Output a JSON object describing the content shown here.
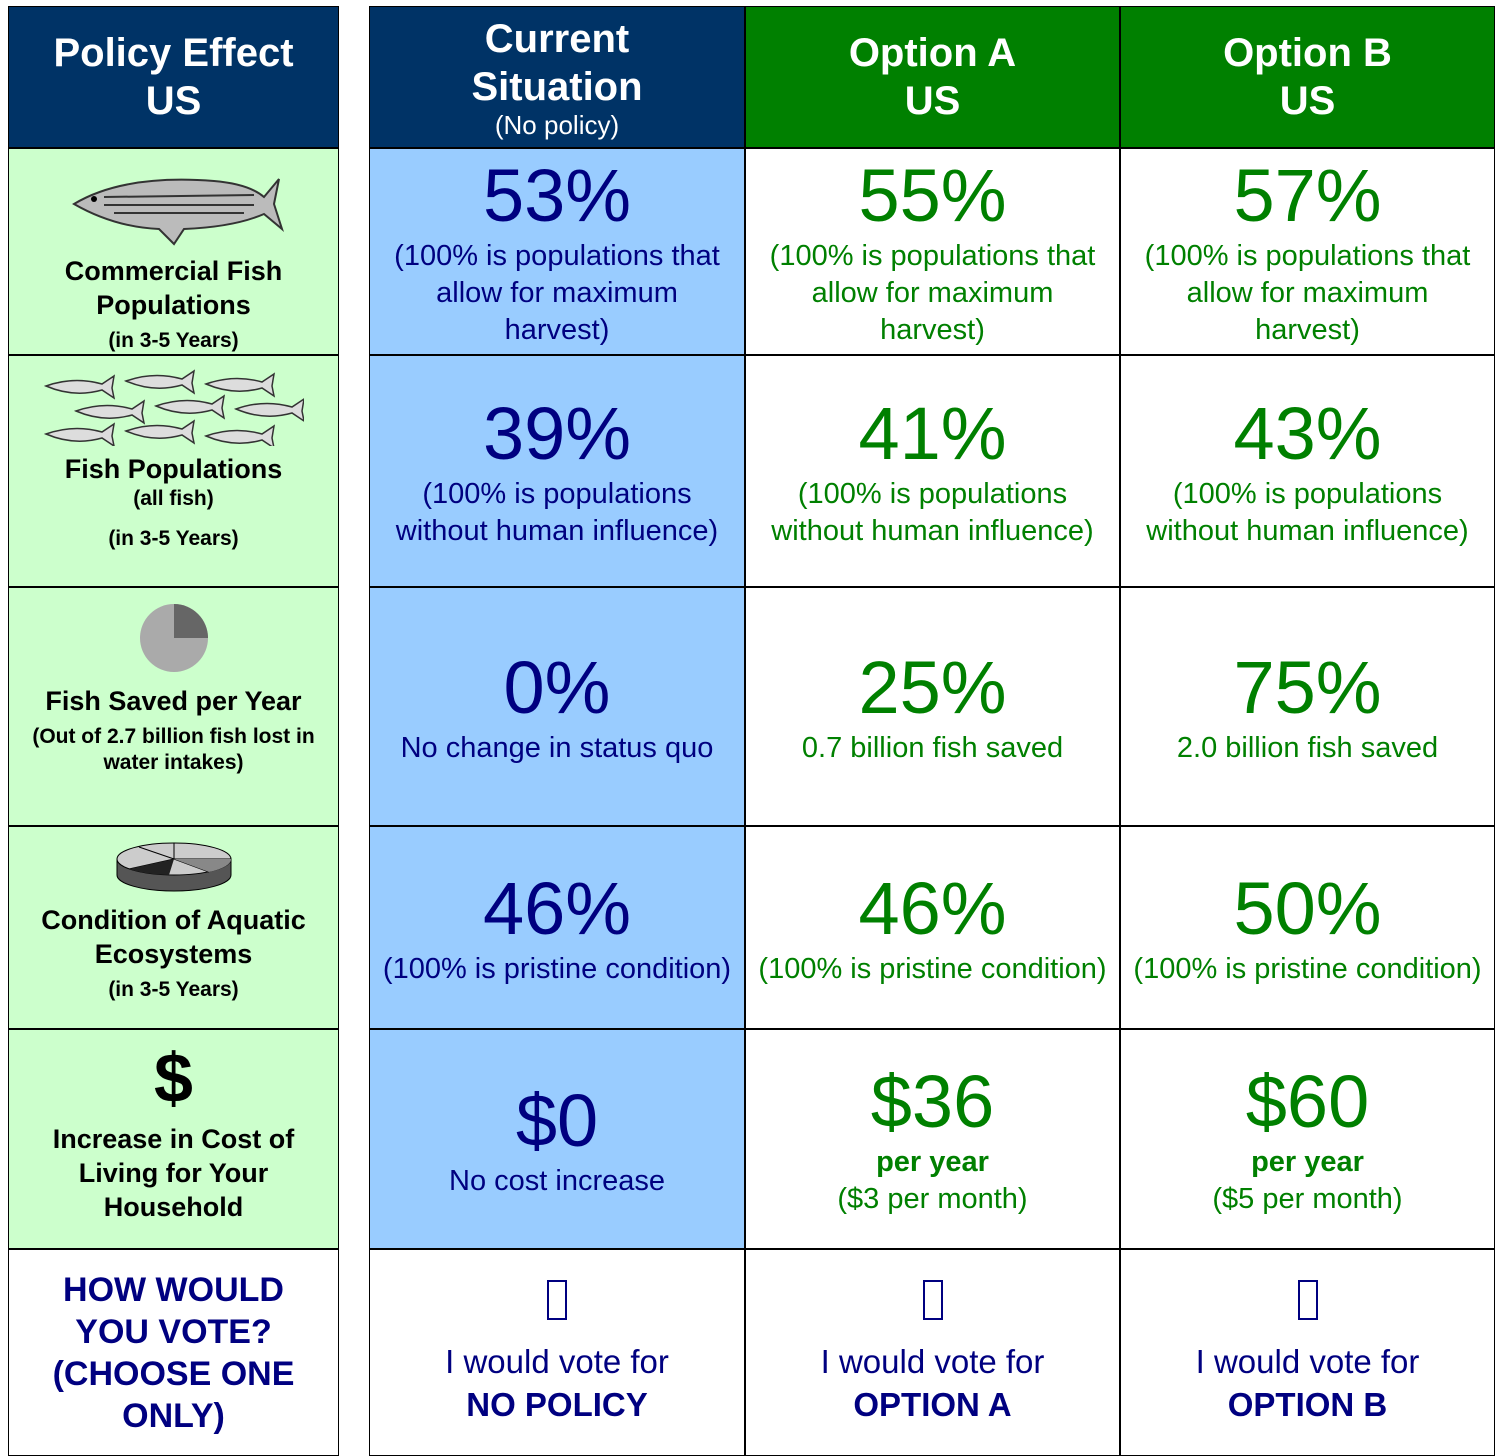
{
  "header": {
    "title": "Policy Effect",
    "region": "US"
  },
  "columns": [
    {
      "title": "Current Situation",
      "subtitle": "(No policy)"
    },
    {
      "title": "Option A",
      "subtitle": "US"
    },
    {
      "title": "Option B",
      "subtitle": "US"
    }
  ],
  "rows": [
    {
      "label": "Commercial Fish Populations",
      "sublabel": "(in 3-5 Years)",
      "cells": [
        {
          "value": "53%",
          "note": "(100% is populations that allow for maximum harvest)"
        },
        {
          "value": "55%",
          "note": "(100% is populations that allow for maximum harvest)"
        },
        {
          "value": "57%",
          "note": "(100% is populations that allow for maximum harvest)"
        }
      ]
    },
    {
      "label": "Fish Populations",
      "sublabel": "(all fish)",
      "sublabel2": "(in 3-5 Years)",
      "cells": [
        {
          "value": "39%",
          "note": "(100% is populations without human influence)"
        },
        {
          "value": "41%",
          "note": "(100% is populations without human influence)"
        },
        {
          "value": "43%",
          "note": "(100% is populations without human influence)"
        }
      ]
    },
    {
      "label": "Fish Saved per Year",
      "sublabel": "(Out of 2.7 billion fish lost in water intakes)",
      "cells": [
        {
          "value": "0%",
          "note": "No change in status quo"
        },
        {
          "value": "25%",
          "note": "0.7 billion fish saved"
        },
        {
          "value": "75%",
          "note": "2.0 billion fish saved"
        }
      ]
    },
    {
      "label": "Condition of Aquatic Ecosystems",
      "sublabel": "(in 3-5 Years)",
      "cells": [
        {
          "value": "46%",
          "note": "(100% is pristine condition)"
        },
        {
          "value": "46%",
          "note": "(100% is pristine condition)"
        },
        {
          "value": "50%",
          "note": "(100% is pristine condition)"
        }
      ]
    },
    {
      "symbol": "$",
      "label": "Increase in Cost of Living for Your Household",
      "cells": [
        {
          "value": "$0",
          "note": "No cost increase"
        },
        {
          "value": "$36",
          "strong": "per year",
          "note": "($3 per month)"
        },
        {
          "value": "$60",
          "strong": "per year",
          "note": "($5 per month)"
        }
      ]
    }
  ],
  "vote": {
    "label": "HOW WOULD YOU VOTE? (CHOOSE ONE ONLY)",
    "cells": [
      {
        "text": "I would vote for",
        "choice": "NO POLICY"
      },
      {
        "text": "I would vote for",
        "choice": "OPTION A"
      },
      {
        "text": "I would vote for",
        "choice": "OPTION B"
      }
    ]
  }
}
